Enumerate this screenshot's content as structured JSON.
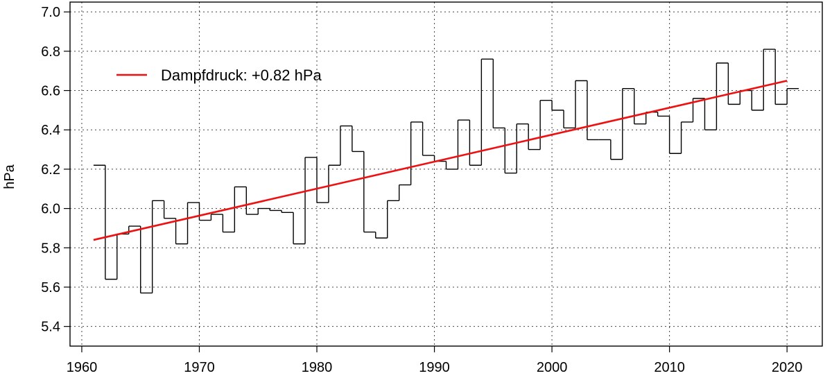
{
  "chart_data": {
    "type": "line",
    "title": "",
    "xlabel": "",
    "ylabel": "hPa",
    "xlim": [
      1959,
      2023
    ],
    "ylim": [
      5.3,
      7.05
    ],
    "x_ticks": [
      "1960",
      "1970",
      "1980",
      "1990",
      "2000",
      "2010",
      "2020"
    ],
    "y_ticks": [
      "5.4",
      "5.6",
      "5.8",
      "6.0",
      "6.2",
      "6.4",
      "6.6",
      "6.8",
      "7.0"
    ],
    "grid": true,
    "legend_position": "top-left",
    "series": [
      {
        "name": "",
        "style": "step",
        "color": "#000000",
        "x": [
          1961,
          1962,
          1963,
          1964,
          1965,
          1966,
          1967,
          1968,
          1969,
          1970,
          1971,
          1972,
          1973,
          1974,
          1975,
          1976,
          1977,
          1978,
          1979,
          1980,
          1981,
          1982,
          1983,
          1984,
          1985,
          1986,
          1987,
          1988,
          1989,
          1990,
          1991,
          1992,
          1993,
          1994,
          1995,
          1996,
          1997,
          1998,
          1999,
          2000,
          2001,
          2002,
          2003,
          2004,
          2005,
          2006,
          2007,
          2008,
          2009,
          2010,
          2011,
          2012,
          2013,
          2014,
          2015,
          2016,
          2017,
          2018,
          2019,
          2020
        ],
        "y": [
          6.22,
          5.64,
          5.87,
          5.91,
          5.57,
          6.04,
          5.95,
          5.82,
          6.03,
          5.94,
          5.97,
          5.88,
          6.11,
          5.97,
          6.0,
          5.99,
          5.98,
          5.82,
          6.26,
          6.03,
          6.22,
          6.42,
          6.29,
          5.88,
          5.85,
          6.04,
          6.12,
          6.44,
          6.27,
          6.24,
          6.2,
          6.45,
          6.22,
          6.76,
          6.41,
          6.18,
          6.43,
          6.3,
          6.55,
          6.5,
          6.41,
          6.65,
          6.35,
          6.35,
          6.25,
          6.61,
          6.43,
          6.49,
          6.47,
          6.28,
          6.44,
          6.56,
          6.4,
          6.74,
          6.53,
          6.6,
          6.5,
          6.81,
          6.53,
          6.61
        ]
      },
      {
        "name": "Dampfdruck: +0.82 hPa",
        "style": "trend",
        "color": "#ee1111",
        "x": [
          1961,
          2020
        ],
        "y": [
          5.84,
          6.65
        ]
      }
    ]
  }
}
